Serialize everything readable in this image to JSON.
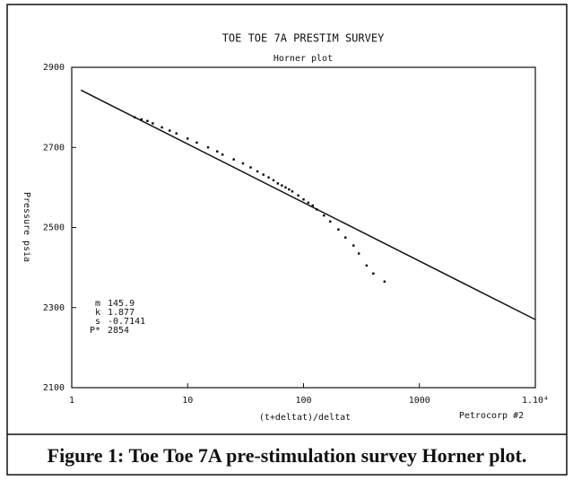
{
  "chart_data": {
    "type": "scatter",
    "title": "TOE TOE 7A PRESTIM SURVEY",
    "subtitle": "Horner plot",
    "x_label": "(t+deltat)/deltat",
    "y_label": "Pressure psia",
    "note": "Petrocorp #2",
    "caption": "Figure 1: Toe Toe 7A pre-stimulation survey Horner plot.",
    "x_log": true,
    "xlim": [
      1,
      10000
    ],
    "ylim": [
      2100,
      2900
    ],
    "xticks": [
      1,
      10,
      100,
      1000,
      {
        "value": 10000,
        "label": "1.10⁴"
      }
    ],
    "yticks": [
      2100,
      2300,
      2500,
      2700,
      2900
    ],
    "color": "#000000",
    "x": [
      3.5,
      4,
      4.5,
      5,
      6,
      7,
      8,
      10,
      12,
      15,
      18,
      20,
      25,
      30,
      35,
      40,
      45,
      50,
      55,
      60,
      65,
      70,
      75,
      80,
      90,
      100,
      110,
      120,
      130,
      150,
      170,
      200,
      230,
      270,
      300,
      350,
      400,
      500
    ],
    "values": [
      2775,
      2770,
      2766,
      2760,
      2750,
      2742,
      2735,
      2722,
      2712,
      2700,
      2690,
      2682,
      2670,
      2660,
      2650,
      2640,
      2632,
      2625,
      2618,
      2610,
      2605,
      2600,
      2595,
      2590,
      2580,
      2570,
      2562,
      2555,
      2545,
      2530,
      2515,
      2495,
      2475,
      2455,
      2435,
      2405,
      2385,
      2365
    ],
    "fit_line": {
      "x": [
        1.2,
        10000
      ],
      "y": [
        2843,
        2270
      ]
    },
    "annotations": [
      [
        "m",
        "145.9"
      ],
      [
        "k",
        "1.877"
      ],
      [
        "s",
        "-0.7141"
      ],
      [
        "P*",
        "2854"
      ]
    ]
  }
}
